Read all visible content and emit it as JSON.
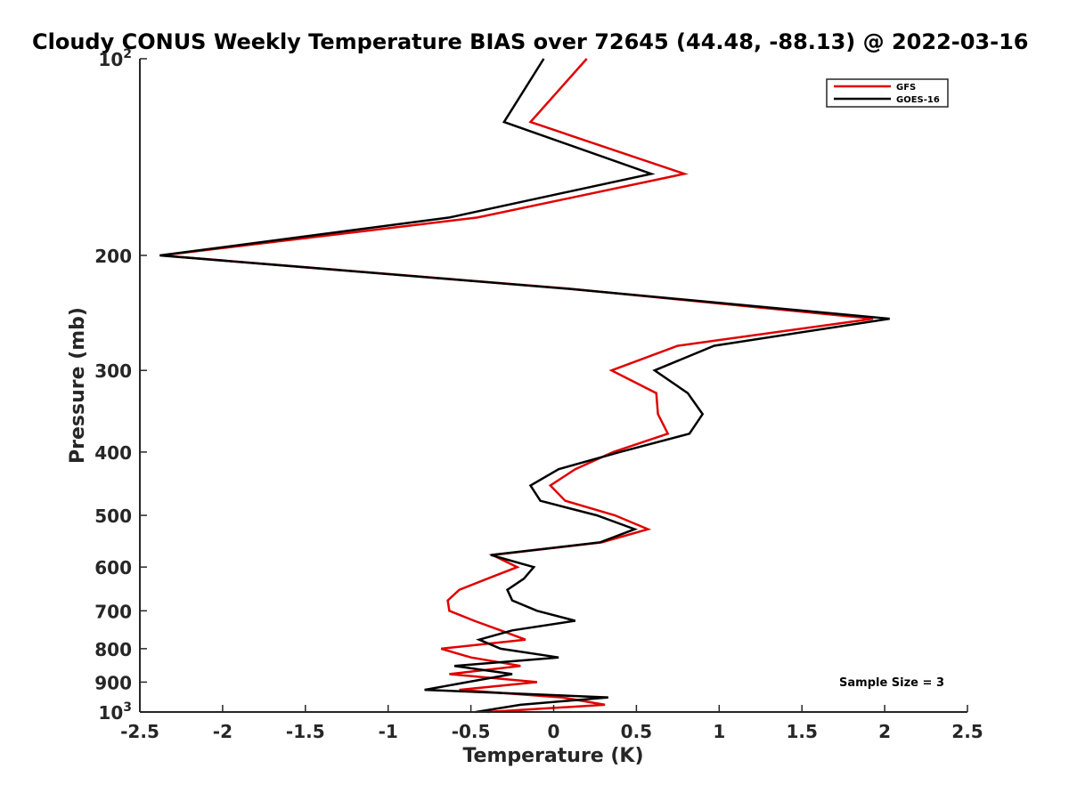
{
  "chart_data": {
    "type": "line",
    "title": "Cloudy CONUS Weekly Temperature BIAS over 72645 (44.48, -88.13) @ 2022-03-16",
    "xlabel": "Temperature (K)",
    "ylabel": "Pressure (mb)",
    "xlim": [
      -2.5,
      2.5
    ],
    "ylim": [
      100,
      1000
    ],
    "y_scale": "log",
    "y_reversed": true,
    "x_ticks": [
      -2.5,
      -2,
      -1.5,
      -1,
      -0.5,
      0,
      0.5,
      1,
      1.5,
      2,
      2.5
    ],
    "x_tick_labels": [
      "-2.5",
      "-2",
      "-1.5",
      "-1",
      "-0.5",
      "0",
      "0.5",
      "1",
      "1.5",
      "2",
      "2.5"
    ],
    "y_ticks": [
      100,
      200,
      300,
      400,
      500,
      600,
      700,
      800,
      900,
      1000
    ],
    "y_tick_labels": [
      {
        "base": "10",
        "exp": "2"
      },
      {
        "base": "200",
        "exp": ""
      },
      {
        "base": "300",
        "exp": ""
      },
      {
        "base": "400",
        "exp": ""
      },
      {
        "base": "500",
        "exp": ""
      },
      {
        "base": "600",
        "exp": ""
      },
      {
        "base": "700",
        "exp": ""
      },
      {
        "base": "800",
        "exp": ""
      },
      {
        "base": "900",
        "exp": ""
      },
      {
        "base": "10",
        "exp": "3"
      }
    ],
    "grid": false,
    "legend_position": "top-right",
    "annotation": "Sample Size = 3",
    "series": [
      {
        "name": "GFS",
        "color": "#e00000",
        "points": [
          {
            "x": 0.2,
            "y": 100
          },
          {
            "x": -0.14,
            "y": 125
          },
          {
            "x": 0.79,
            "y": 150
          },
          {
            "x": -0.46,
            "y": 175
          },
          {
            "x": -2.37,
            "y": 200
          },
          {
            "x": 0.1,
            "y": 225
          },
          {
            "x": 1.93,
            "y": 250
          },
          {
            "x": 0.75,
            "y": 275
          },
          {
            "x": 0.35,
            "y": 300
          },
          {
            "x": 0.62,
            "y": 325
          },
          {
            "x": 0.63,
            "y": 350
          },
          {
            "x": 0.69,
            "y": 375
          },
          {
            "x": 0.36,
            "y": 400
          },
          {
            "x": 0.13,
            "y": 425
          },
          {
            "x": -0.02,
            "y": 450
          },
          {
            "x": 0.07,
            "y": 475
          },
          {
            "x": 0.37,
            "y": 500
          },
          {
            "x": 0.57,
            "y": 525
          },
          {
            "x": 0.29,
            "y": 550
          },
          {
            "x": -0.37,
            "y": 575
          },
          {
            "x": -0.22,
            "y": 600
          },
          {
            "x": -0.4,
            "y": 625
          },
          {
            "x": -0.57,
            "y": 650
          },
          {
            "x": -0.64,
            "y": 675
          },
          {
            "x": -0.63,
            "y": 700
          },
          {
            "x": -0.48,
            "y": 725
          },
          {
            "x": -0.32,
            "y": 750
          },
          {
            "x": -0.17,
            "y": 775
          },
          {
            "x": -0.68,
            "y": 800
          },
          {
            "x": -0.5,
            "y": 825
          },
          {
            "x": -0.2,
            "y": 850
          },
          {
            "x": -0.63,
            "y": 875
          },
          {
            "x": -0.1,
            "y": 900
          },
          {
            "x": -0.57,
            "y": 925
          },
          {
            "x": 0.05,
            "y": 950
          },
          {
            "x": 0.31,
            "y": 975
          },
          {
            "x": -0.4,
            "y": 1000
          }
        ]
      },
      {
        "name": "GOES-16",
        "color": "#000000",
        "points": [
          {
            "x": -0.06,
            "y": 100
          },
          {
            "x": -0.3,
            "y": 125
          },
          {
            "x": 0.59,
            "y": 150
          },
          {
            "x": -0.63,
            "y": 175
          },
          {
            "x": -2.38,
            "y": 200
          },
          {
            "x": 0.09,
            "y": 225
          },
          {
            "x": 2.03,
            "y": 250
          },
          {
            "x": 0.97,
            "y": 275
          },
          {
            "x": 0.61,
            "y": 300
          },
          {
            "x": 0.81,
            "y": 325
          },
          {
            "x": 0.9,
            "y": 350
          },
          {
            "x": 0.82,
            "y": 375
          },
          {
            "x": 0.4,
            "y": 400
          },
          {
            "x": 0.03,
            "y": 425
          },
          {
            "x": -0.14,
            "y": 450
          },
          {
            "x": -0.08,
            "y": 475
          },
          {
            "x": 0.26,
            "y": 500
          },
          {
            "x": 0.49,
            "y": 525
          },
          {
            "x": 0.28,
            "y": 550
          },
          {
            "x": -0.38,
            "y": 575
          },
          {
            "x": -0.12,
            "y": 600
          },
          {
            "x": -0.18,
            "y": 625
          },
          {
            "x": -0.28,
            "y": 650
          },
          {
            "x": -0.25,
            "y": 675
          },
          {
            "x": -0.1,
            "y": 700
          },
          {
            "x": 0.13,
            "y": 725
          },
          {
            "x": -0.25,
            "y": 750
          },
          {
            "x": -0.45,
            "y": 775
          },
          {
            "x": -0.32,
            "y": 800
          },
          {
            "x": 0.03,
            "y": 825
          },
          {
            "x": -0.6,
            "y": 850
          },
          {
            "x": -0.25,
            "y": 875
          },
          {
            "x": -0.52,
            "y": 900
          },
          {
            "x": -0.78,
            "y": 925
          },
          {
            "x": 0.33,
            "y": 950
          },
          {
            "x": -0.2,
            "y": 975
          },
          {
            "x": -0.47,
            "y": 1000
          }
        ]
      }
    ]
  }
}
